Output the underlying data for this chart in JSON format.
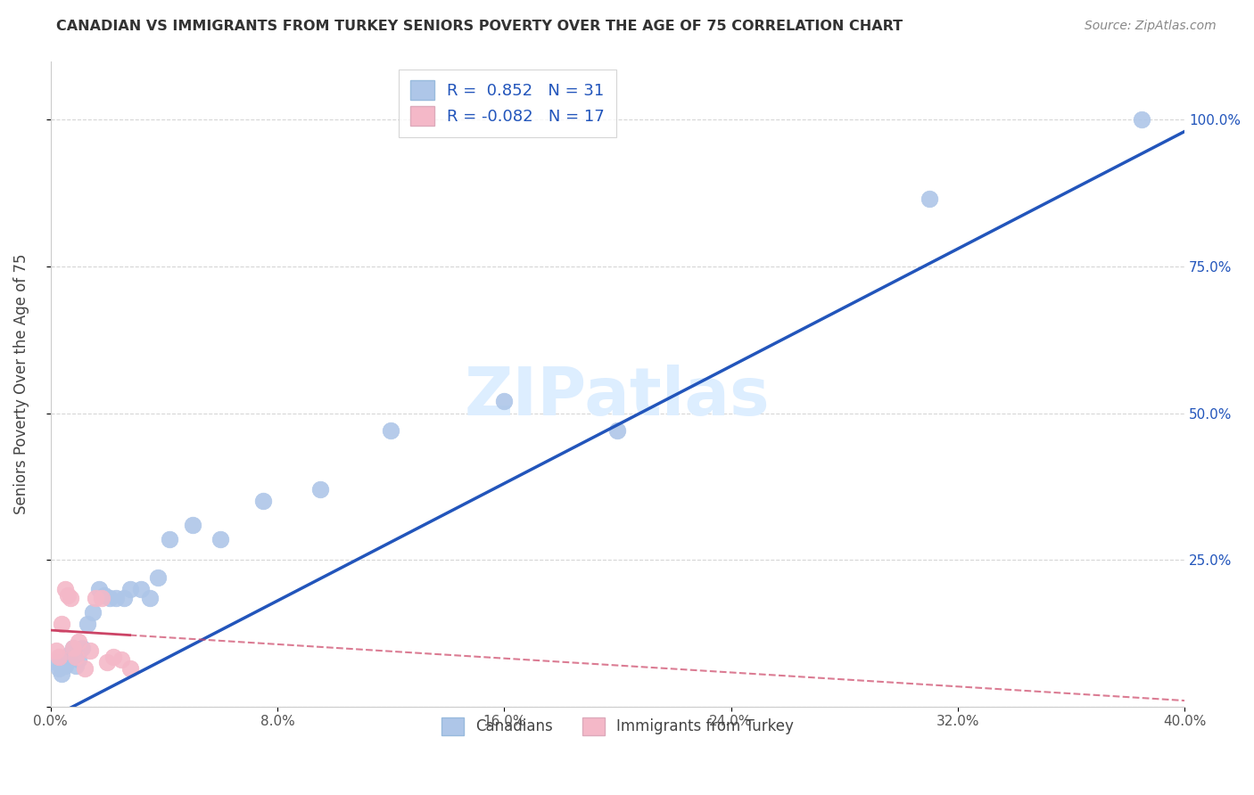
{
  "title": "CANADIAN VS IMMIGRANTS FROM TURKEY SENIORS POVERTY OVER THE AGE OF 75 CORRELATION CHART",
  "source": "Source: ZipAtlas.com",
  "ylabel": "Seniors Poverty Over the Age of 75",
  "watermark": "ZIPatlas",
  "canadians_x": [
    0.002,
    0.003,
    0.004,
    0.005,
    0.006,
    0.007,
    0.008,
    0.009,
    0.01,
    0.011,
    0.013,
    0.015,
    0.017,
    0.019,
    0.021,
    0.023,
    0.026,
    0.028,
    0.032,
    0.035,
    0.038,
    0.042,
    0.05,
    0.06,
    0.075,
    0.095,
    0.12,
    0.16,
    0.2,
    0.31,
    0.385
  ],
  "canadians_y": [
    0.075,
    0.065,
    0.055,
    0.07,
    0.08,
    0.09,
    0.1,
    0.07,
    0.08,
    0.1,
    0.14,
    0.16,
    0.2,
    0.19,
    0.185,
    0.185,
    0.185,
    0.2,
    0.2,
    0.185,
    0.22,
    0.285,
    0.31,
    0.285,
    0.35,
    0.37,
    0.47,
    0.52,
    0.47,
    0.865,
    1.0
  ],
  "turkey_x": [
    0.002,
    0.003,
    0.004,
    0.005,
    0.006,
    0.007,
    0.008,
    0.009,
    0.01,
    0.012,
    0.014,
    0.016,
    0.018,
    0.02,
    0.022,
    0.025,
    0.028
  ],
  "turkey_y": [
    0.095,
    0.085,
    0.14,
    0.2,
    0.19,
    0.185,
    0.1,
    0.085,
    0.11,
    0.065,
    0.095,
    0.185,
    0.185,
    0.075,
    0.085,
    0.08,
    0.065
  ],
  "R_canadian": 0.852,
  "N_canadian": 31,
  "R_turkey": -0.082,
  "N_turkey": 17,
  "xlim": [
    0.0,
    0.4
  ],
  "ylim": [
    0.0,
    1.1
  ],
  "x_ticks": [
    0.0,
    0.08,
    0.16,
    0.24,
    0.32,
    0.4
  ],
  "x_tick_labels": [
    "0.0%",
    "8.0%",
    "16.0%",
    "24.0%",
    "32.0%",
    "40.0%"
  ],
  "y_ticks": [
    0.0,
    0.25,
    0.5,
    0.75,
    1.0
  ],
  "y_tick_labels_right": [
    "",
    "25.0%",
    "50.0%",
    "75.0%",
    "100.0%"
  ],
  "canadian_color": "#aec6e8",
  "canadian_line_color": "#2255bb",
  "turkey_color": "#f4b8c8",
  "turkey_line_color": "#cc4466",
  "background_color": "#ffffff",
  "grid_color": "#cccccc",
  "title_color": "#333333",
  "source_color": "#888888",
  "watermark_color": "#ddeeff",
  "legend_R_color": "#2255bb",
  "right_axis_color": "#2255bb"
}
